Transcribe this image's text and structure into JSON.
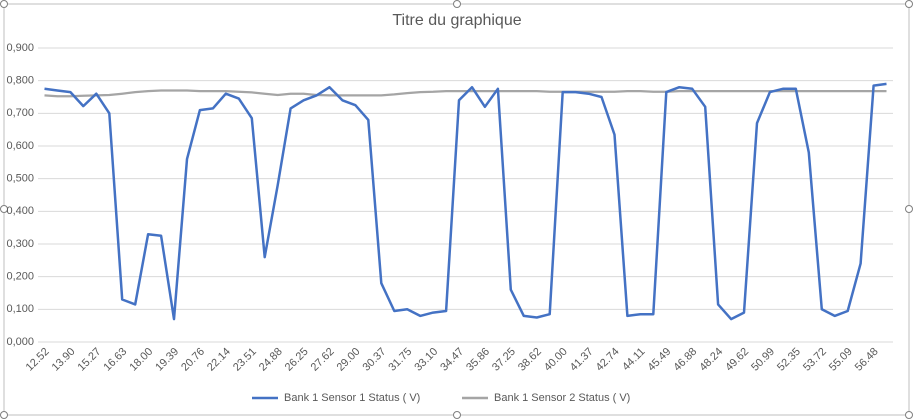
{
  "chart_data": {
    "type": "line",
    "title": "Titre du graphique",
    "categories": [
      "12.52",
      null,
      "13.90",
      null,
      "15.27",
      null,
      "16.63",
      null,
      "18.00",
      null,
      "19.39",
      null,
      "20.76",
      null,
      "22.14",
      null,
      "23.51",
      null,
      "24.88",
      null,
      "26.25",
      null,
      "27.62",
      null,
      "29.00",
      null,
      "30.37",
      null,
      "31.75",
      null,
      "33.10",
      null,
      "34.47",
      null,
      "35.86",
      null,
      "37.25",
      null,
      "38.62",
      null,
      "40.00",
      null,
      "41.37",
      null,
      "42.74",
      null,
      "44.11",
      null,
      "45.49",
      null,
      "46.88",
      null,
      "48.24",
      null,
      "49.62",
      null,
      "50.99",
      null,
      "52.35",
      null,
      "53.72",
      null,
      "55.09",
      null,
      "56.48",
      null
    ],
    "series": [
      {
        "name": "Bank 1 Sensor 1 Status ( V)",
        "color": "#4472c4",
        "values": [
          0.775,
          0.77,
          0.765,
          0.722,
          0.76,
          0.7,
          0.13,
          0.115,
          0.33,
          0.325,
          0.07,
          0.56,
          0.71,
          0.715,
          0.76,
          0.745,
          0.685,
          0.26,
          0.48,
          0.715,
          0.74,
          0.755,
          0.78,
          0.74,
          0.725,
          0.68,
          0.18,
          0.095,
          0.1,
          0.08,
          0.09,
          0.095,
          0.74,
          0.78,
          0.72,
          0.775,
          0.16,
          0.08,
          0.075,
          0.085,
          0.765,
          0.765,
          0.76,
          0.75,
          0.635,
          0.08,
          0.085,
          0.085,
          0.765,
          0.78,
          0.775,
          0.72,
          0.115,
          0.07,
          0.09,
          0.67,
          0.765,
          0.775,
          0.775,
          0.58,
          0.1,
          0.08,
          0.095,
          0.24,
          0.785,
          0.79
        ]
      },
      {
        "name": "Bank 1 Sensor 2 Status ( V)",
        "color": "#a5a5a5",
        "values": [
          0.755,
          0.752,
          0.752,
          0.754,
          0.755,
          0.756,
          0.76,
          0.765,
          0.768,
          0.77,
          0.77,
          0.77,
          0.768,
          0.768,
          0.768,
          0.766,
          0.764,
          0.76,
          0.756,
          0.76,
          0.76,
          0.756,
          0.755,
          0.755,
          0.755,
          0.755,
          0.755,
          0.758,
          0.762,
          0.765,
          0.766,
          0.768,
          0.768,
          0.768,
          0.768,
          0.768,
          0.768,
          0.768,
          0.768,
          0.766,
          0.766,
          0.766,
          0.766,
          0.766,
          0.766,
          0.768,
          0.768,
          0.766,
          0.766,
          0.768,
          0.768,
          0.768,
          0.768,
          0.768,
          0.768,
          0.768,
          0.768,
          0.768,
          0.768,
          0.768,
          0.768,
          0.768,
          0.768,
          0.768,
          0.768,
          0.768
        ]
      }
    ],
    "ylim": [
      0,
      0.9
    ],
    "yticks": [
      {
        "value": 0,
        "label": "0,000"
      },
      {
        "value": 0.1,
        "label": "0,100"
      },
      {
        "value": 0.2,
        "label": "0,200"
      },
      {
        "value": 0.3,
        "label": "0,300"
      },
      {
        "value": 0.4,
        "label": "0,400"
      },
      {
        "value": 0.5,
        "label": "0,500"
      },
      {
        "value": 0.6,
        "label": "0,600"
      },
      {
        "value": 0.7,
        "label": "0,700"
      },
      {
        "value": 0.8,
        "label": "0,800"
      },
      {
        "value": 0.9,
        "label": "0,900"
      }
    ],
    "grid": true,
    "legend": "bottom"
  }
}
